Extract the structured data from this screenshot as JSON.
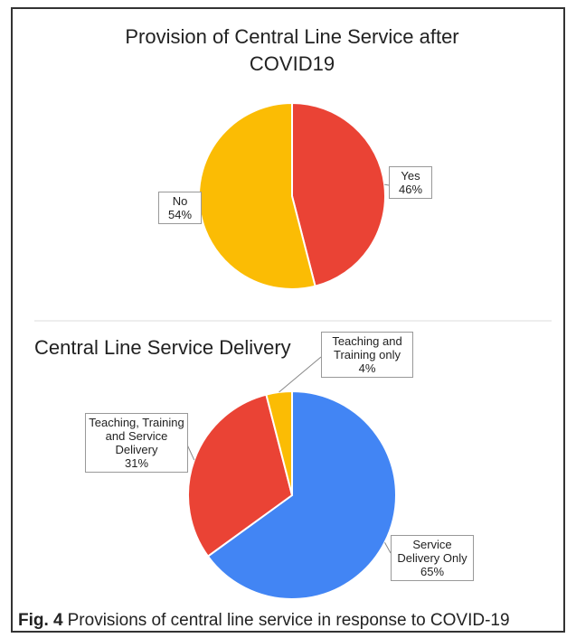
{
  "chart_data": [
    {
      "type": "pie",
      "title": "Provision of Central Line Service after COVID19",
      "categories": [
        "Yes",
        "No"
      ],
      "values": [
        46,
        54
      ],
      "value_labels": [
        "46%",
        "54%"
      ],
      "colors": [
        "#ea4335",
        "#fbbc04"
      ]
    },
    {
      "type": "pie",
      "title": "Central Line Service Delivery",
      "categories": [
        "Service Delivery Only",
        "Teaching, Training and Service Delivery",
        "Teaching and Training only"
      ],
      "values": [
        65,
        31,
        4
      ],
      "value_labels": [
        "65%",
        "31%",
        "4%"
      ],
      "colors": [
        "#4285f4",
        "#ea4335",
        "#fbbc04"
      ]
    }
  ],
  "caption": {
    "label": "Fig. 4",
    "text": "Provisions of central line service in response to COVID-19"
  }
}
